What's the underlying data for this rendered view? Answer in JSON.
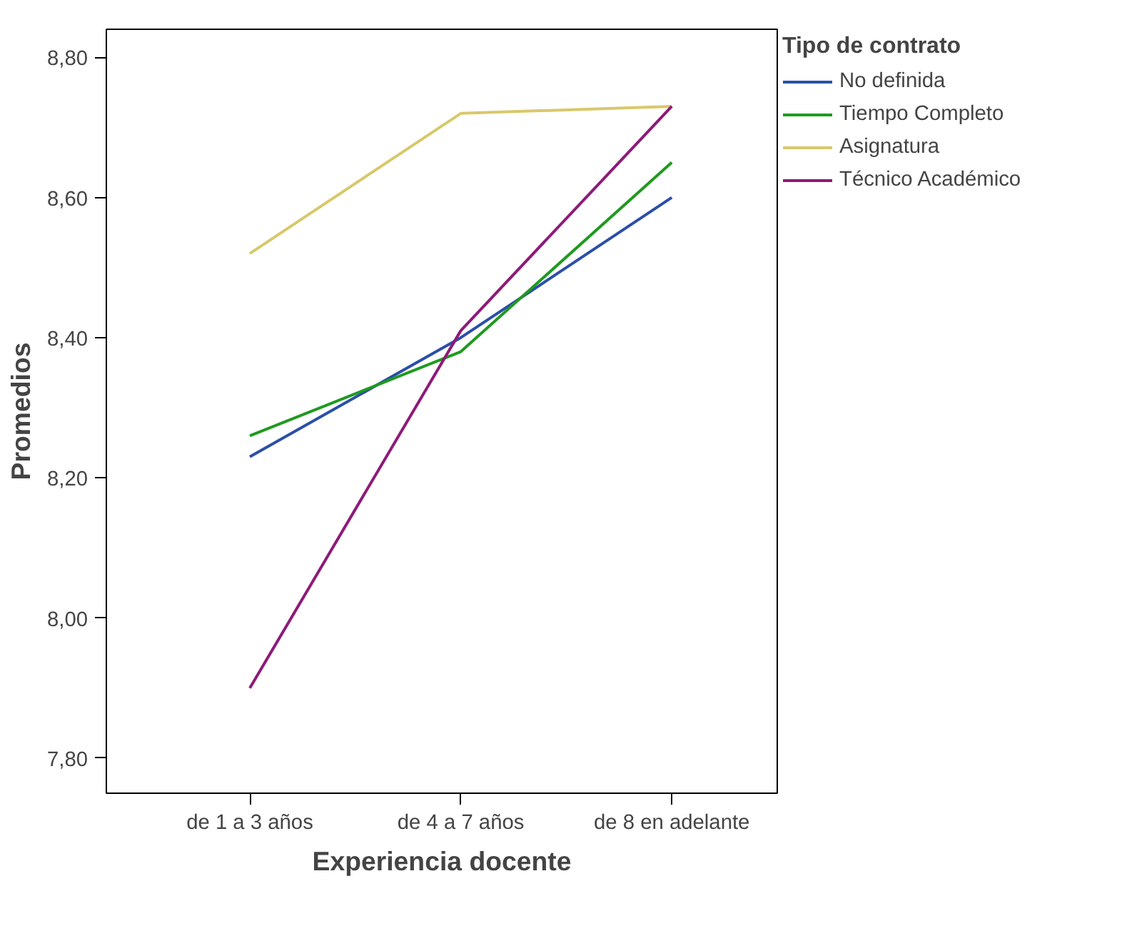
{
  "chart_data": {
    "type": "line",
    "xlabel": "Experiencia docente",
    "ylabel": "Promedios",
    "legend_title": "Tipo de contrato",
    "legend": "right",
    "grid": false,
    "marker": "none",
    "line_style": "solid",
    "categories": [
      "de 1 a 3 años",
      "de 4 a 7 años",
      "de 8 en adelante"
    ],
    "ylim": [
      7.75,
      8.84
    ],
    "yticks": [
      {
        "value": 7.8,
        "label": "7,80"
      },
      {
        "value": 8.0,
        "label": "8,00"
      },
      {
        "value": 8.2,
        "label": "8,20"
      },
      {
        "value": 8.4,
        "label": "8,40"
      },
      {
        "value": 8.6,
        "label": "8,60"
      },
      {
        "value": 8.8,
        "label": "8,80"
      }
    ],
    "series": [
      {
        "name": "No definida",
        "color": "#2a4fa8",
        "values": [
          8.23,
          8.4,
          8.6
        ]
      },
      {
        "name": "Tiempo Completo",
        "color": "#1f9a1f",
        "values": [
          8.26,
          8.38,
          8.65
        ]
      },
      {
        "name": "Asignatura",
        "color": "#d8c86a",
        "values": [
          8.52,
          8.72,
          8.73
        ]
      },
      {
        "name": "Técnico Académico",
        "color": "#8e1a78",
        "values": [
          7.9,
          8.41,
          8.73
        ]
      }
    ]
  }
}
